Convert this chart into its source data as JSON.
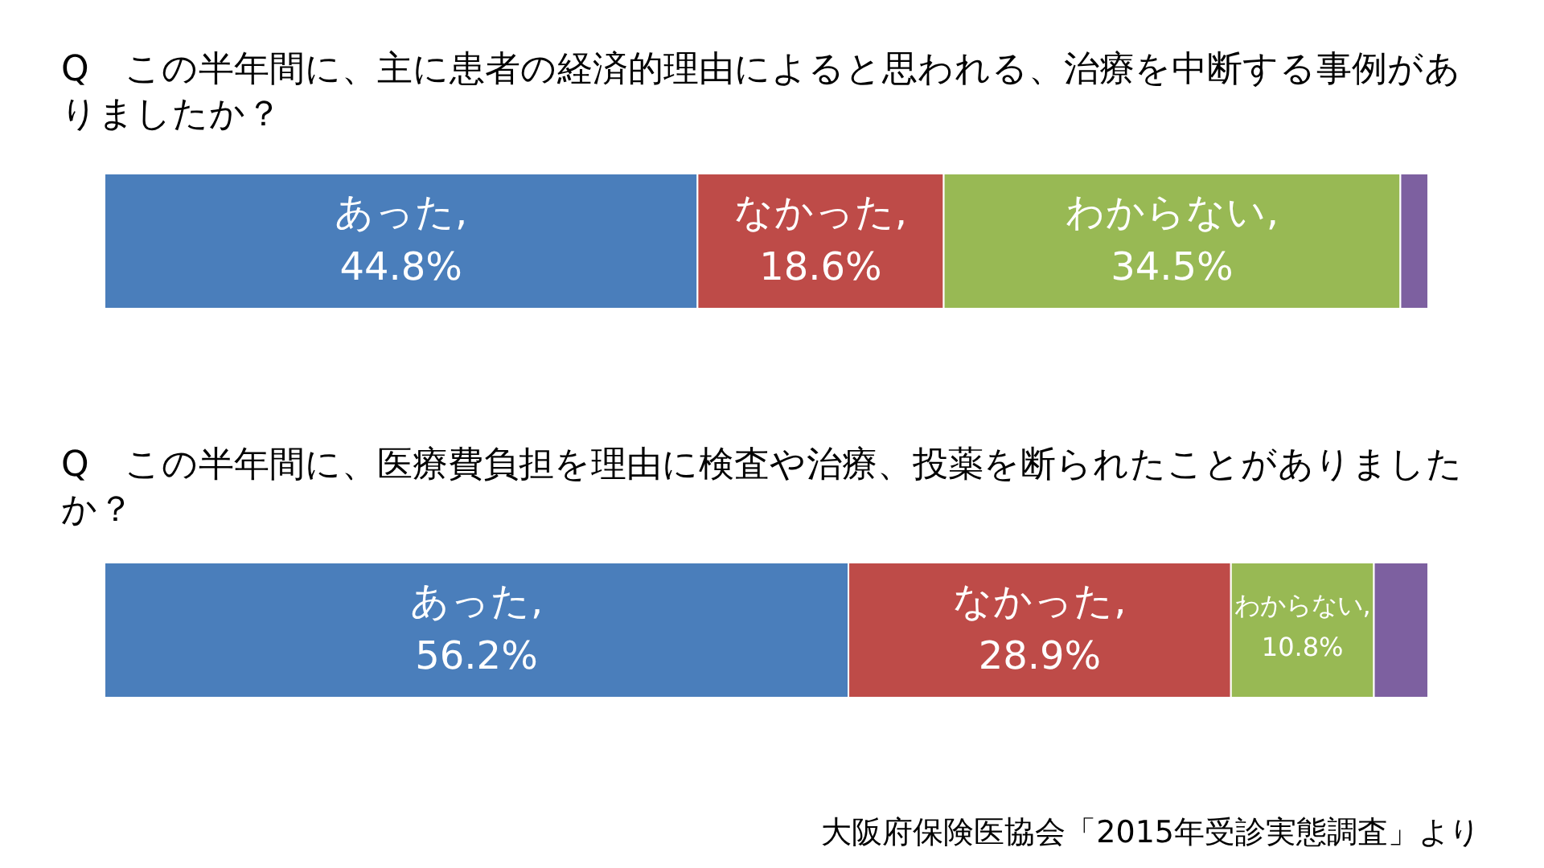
{
  "chart_data": [
    {
      "type": "bar",
      "stacked": true,
      "orientation": "horizontal",
      "title": "Q　この半年間に、主に患者の経済的理由によると思われる、治療を中断する事例がありましたか？",
      "categories": [
        null
      ],
      "series": [
        {
          "name": "あった,",
          "color": "#4a7ebb",
          "values": [
            44.8
          ],
          "value_labels": [
            "44.8%"
          ]
        },
        {
          "name": "なかった,",
          "color": "#be4b48",
          "values": [
            18.6
          ],
          "value_labels": [
            "18.6%"
          ]
        },
        {
          "name": "わからない,",
          "color": "#98b954",
          "values": [
            34.5
          ],
          "value_labels": [
            "34.5%"
          ]
        },
        {
          "color": "#7d60a0",
          "values": [
            2.1
          ],
          "value_labels": [
            null
          ]
        }
      ]
    },
    {
      "type": "bar",
      "stacked": true,
      "orientation": "horizontal",
      "title": "Q　この半年間に、医療費負担を理由に検査や治療、投薬を断られたことがありましたか？",
      "categories": [
        null
      ],
      "series": [
        {
          "name": "あった,",
          "color": "#4a7ebb",
          "values": [
            56.2
          ],
          "value_labels": [
            "56.2%"
          ]
        },
        {
          "name": "なかった,",
          "color": "#be4b48",
          "values": [
            28.9
          ],
          "value_labels": [
            "28.9%"
          ]
        },
        {
          "name": "わからない,",
          "color": "#98b954",
          "values": [
            10.8
          ],
          "value_labels": [
            "10.8%"
          ]
        },
        {
          "color": "#7d60a0",
          "values": [
            4.1
          ],
          "value_labels": [
            null
          ]
        }
      ],
      "annotations": [
        "大阪府保険医協会「2015年受診実態調査」より"
      ]
    }
  ]
}
